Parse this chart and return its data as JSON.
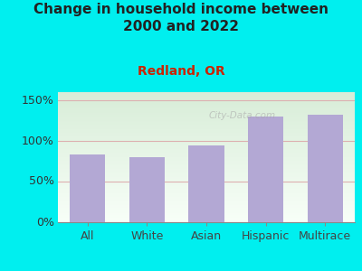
{
  "title": "Change in household income between\n2000 and 2022",
  "subtitle": "Redland, OR",
  "categories": [
    "All",
    "White",
    "Asian",
    "Hispanic",
    "Multirace"
  ],
  "values": [
    83,
    80,
    95,
    130,
    132
  ],
  "bar_color": "#b3a8d4",
  "background_color": "#00efef",
  "plot_bg_top": "#d8edd8",
  "plot_bg_bottom": "#f8fff8",
  "title_fontsize": 11,
  "title_color": "#222222",
  "subtitle_fontsize": 10,
  "subtitle_color": "#cc2200",
  "ylim": [
    0,
    160
  ],
  "yticks": [
    0,
    50,
    100,
    150
  ],
  "ytick_labels": [
    "0%",
    "50%",
    "100%",
    "150%"
  ],
  "grid_color": "#ddb0b0",
  "tick_label_fontsize": 9,
  "watermark": "City-Data.com"
}
